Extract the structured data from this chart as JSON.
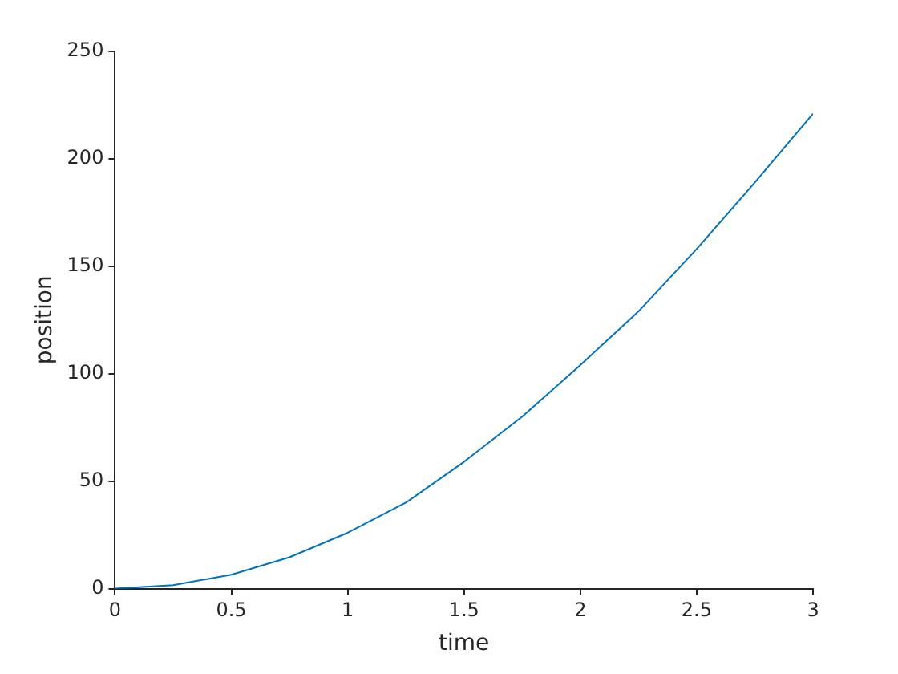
{
  "chart_data": {
    "type": "line",
    "xlabel": "time",
    "ylabel": "position",
    "x": [
      0,
      0.25,
      0.5,
      0.75,
      1,
      1.25,
      1.5,
      1.75,
      2,
      2.25,
      2.5,
      2.75,
      3
    ],
    "series": [
      {
        "color": "#0072bd",
        "values": [
          0,
          1.6,
          6.5,
          14.6,
          26,
          40,
          59,
          80,
          104,
          129,
          158,
          189,
          221
        ]
      }
    ],
    "xlim": [
      0,
      3
    ],
    "xticks": [
      0,
      0.5,
      1,
      1.5,
      2,
      2.5,
      3
    ],
    "ylim": [
      0,
      250
    ],
    "yticks": [
      0,
      50,
      100,
      150,
      200,
      250
    ],
    "grid": false,
    "legend": false,
    "marker": "none",
    "line_style": "solid"
  }
}
